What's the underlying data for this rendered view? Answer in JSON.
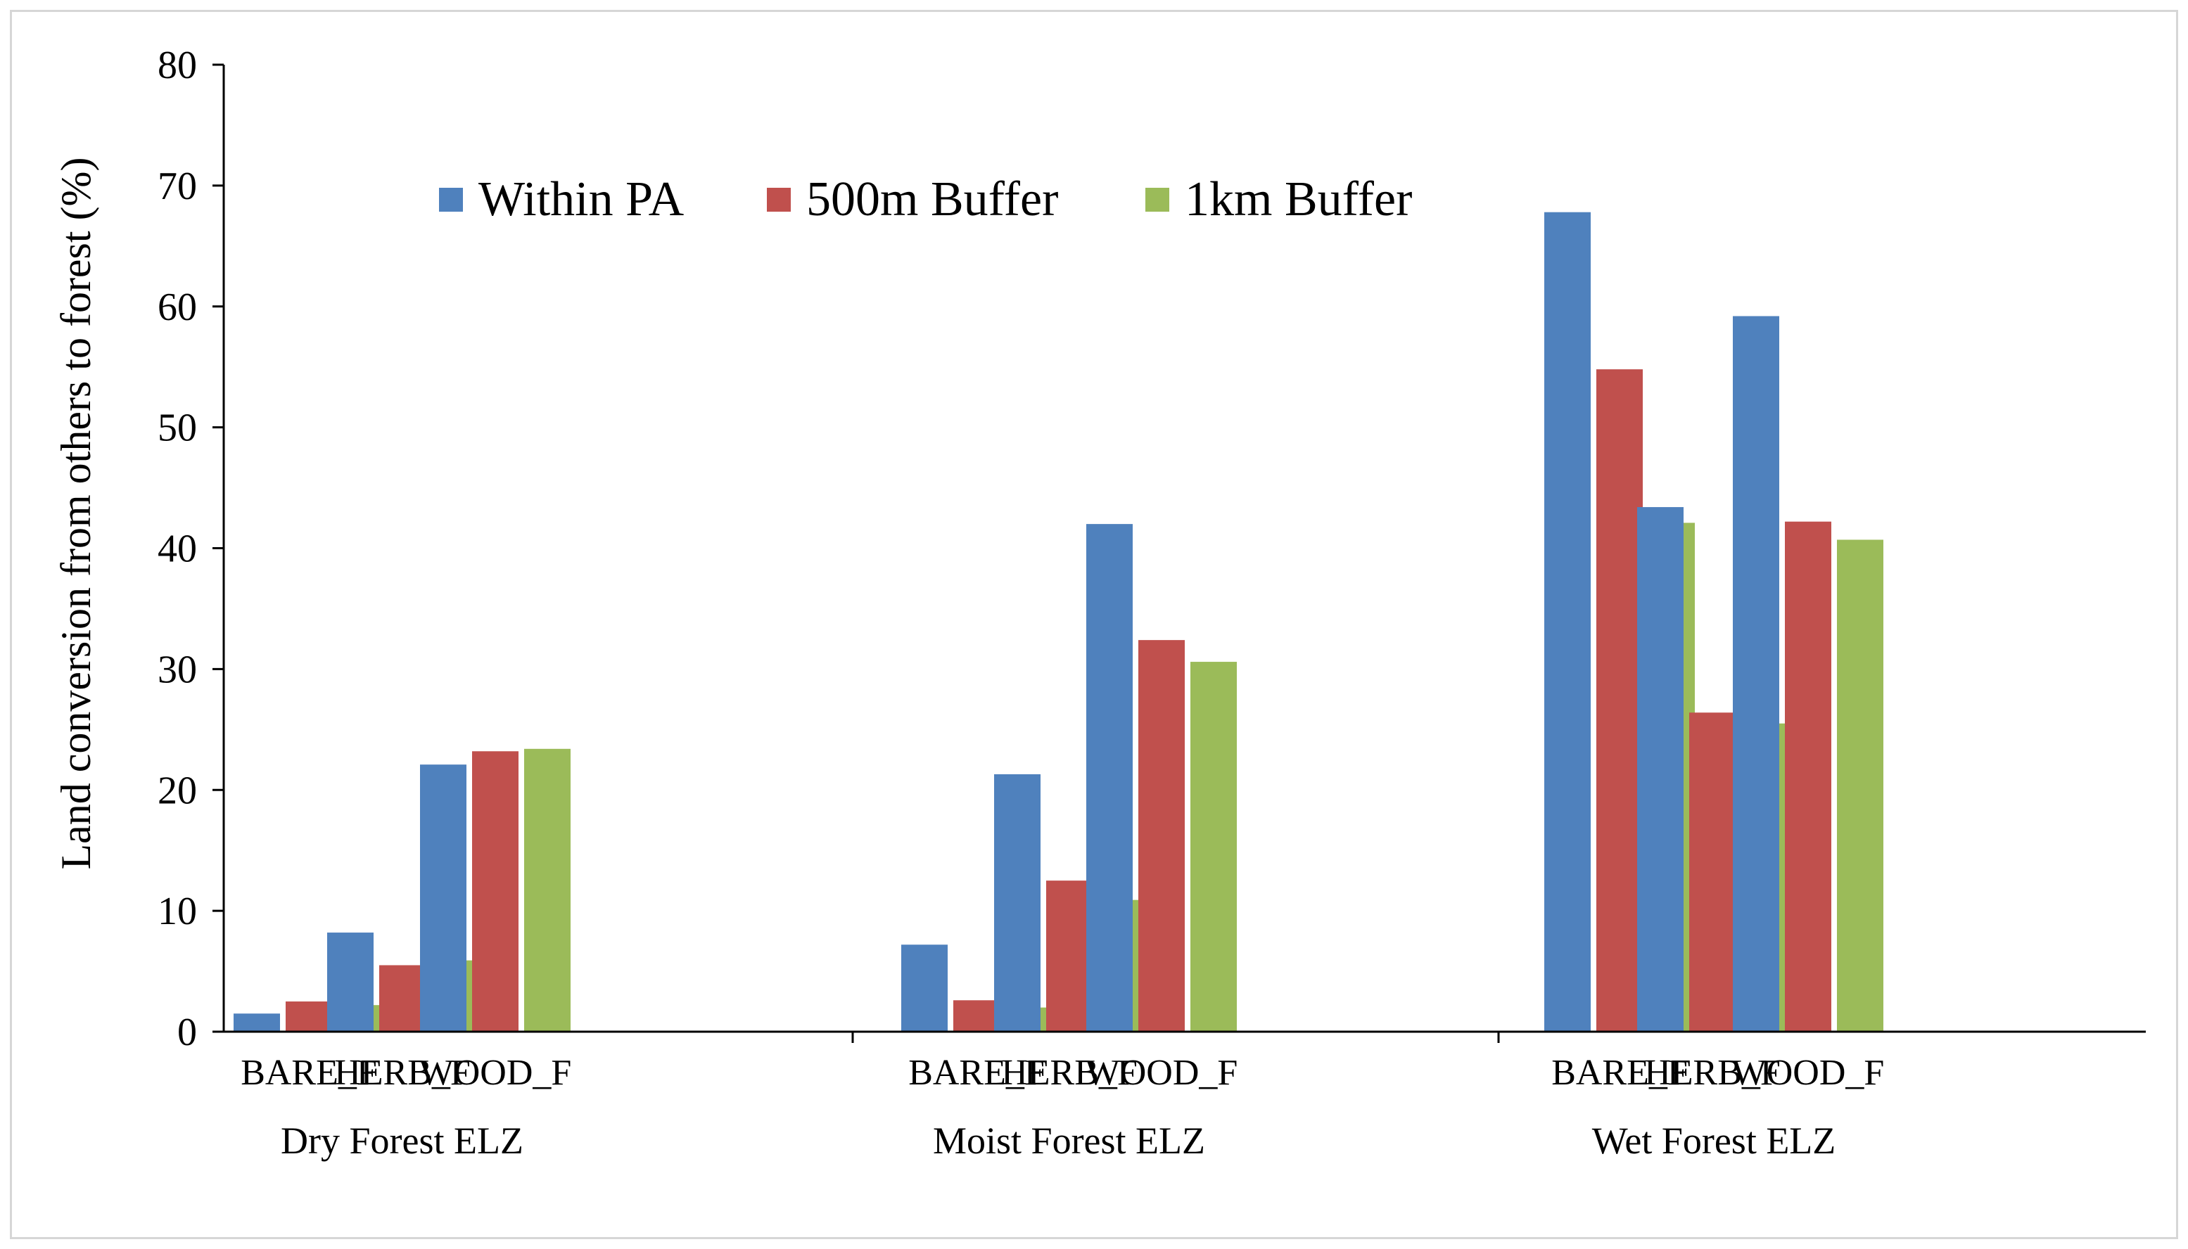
{
  "chart_data": {
    "type": "bar",
    "ylabel": "Land conversion from others to forest  (%)",
    "ylim": [
      0,
      80
    ],
    "yticks": [
      0,
      10,
      20,
      30,
      40,
      50,
      60,
      70,
      80
    ],
    "legend_position": "top-left",
    "colors": [
      "#4f81bd",
      "#c0504d",
      "#9bbb59"
    ],
    "groups": [
      {
        "name": "Dry Forest  ELZ",
        "categories": [
          "BARE_F",
          "HERB_F",
          "WOOD_F"
        ]
      },
      {
        "name": "Moist Forest  ELZ",
        "categories": [
          "BARE_F",
          "HERB_F",
          "WOOD_F"
        ]
      },
      {
        "name": "Wet Forest ELZ",
        "categories": [
          "BARE_F",
          "HERB_F",
          "WOOD_F"
        ]
      }
    ],
    "series": [
      {
        "name": "Within PA",
        "values": [
          1.5,
          8.2,
          22.1,
          7.2,
          21.3,
          42.0,
          67.8,
          43.4,
          59.2
        ]
      },
      {
        "name": "500m Buffer",
        "values": [
          2.5,
          5.5,
          23.2,
          2.6,
          12.5,
          32.4,
          54.8,
          26.4,
          42.2
        ]
      },
      {
        "name": "1km Buffer",
        "values": [
          2.2,
          5.9,
          23.4,
          2.0,
          10.9,
          30.6,
          42.1,
          25.5,
          40.7
        ]
      }
    ]
  }
}
